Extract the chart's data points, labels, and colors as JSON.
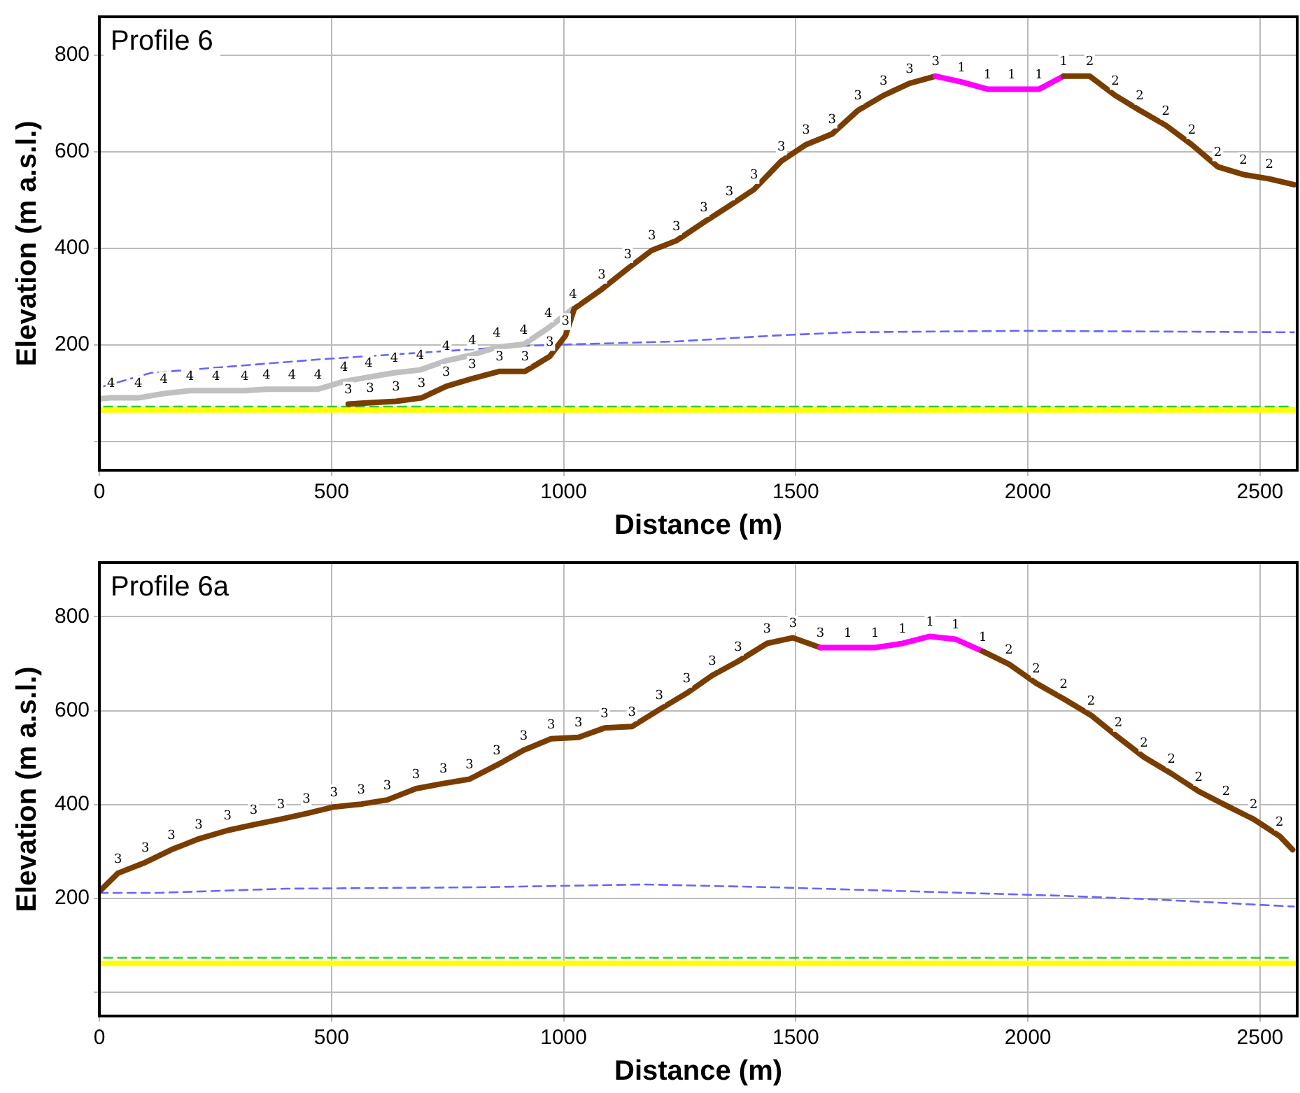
{
  "chart_data": [
    {
      "type": "line",
      "title": "Profile 6",
      "xlabel": "Distance (m)",
      "ylabel": "Elevation (m a.s.l.)",
      "xlim": [
        0,
        2580
      ],
      "xticks": [
        0,
        500,
        1000,
        1500,
        2000,
        2500
      ],
      "ylim": [
        -60,
        880
      ],
      "yticks": [
        {
          "value": 0,
          "label": null
        },
        200,
        400,
        600,
        800
      ],
      "grid": true,
      "legend": false,
      "marker": "none",
      "series": [
        {
          "color": "#ffff00",
          "x": [
            0,
            2580
          ],
          "values": [
            65,
            65
          ]
        },
        {
          "color": "#33cc33",
          "line_style": "dashed",
          "x": [
            10,
            2570
          ],
          "values": [
            72,
            72
          ]
        },
        {
          "color": "#6666ff",
          "line_style": "dashed",
          "x": [
            10,
            112,
            477,
            917,
            1020,
            1243,
            1451,
            1615,
            1987,
            2573
          ],
          "values": [
            114,
            142,
            170,
            198,
            201,
            207,
            219,
            226,
            229,
            226
          ]
        },
        {
          "name": "4",
          "color": "#c0c0c0",
          "x": [
            0,
            25,
            84,
            139,
            195,
            251,
            313,
            360,
            415,
            471,
            527,
            580,
            635,
            691,
            747,
            803,
            856,
            914,
            967,
            1020
          ],
          "values": [
            88,
            90,
            90,
            99,
            105,
            105,
            105,
            108,
            108,
            108,
            124,
            133,
            142,
            148,
            167,
            179,
            195,
            201,
            235,
            275
          ]
        },
        {
          "name": "3",
          "color": "#7a3d00",
          "x": [
            536,
            583,
            639,
            694,
            747,
            803,
            862,
            917,
            970,
            1004,
            1023,
            1082,
            1138,
            1190,
            1243,
            1302,
            1357,
            1410,
            1469,
            1522,
            1578,
            1634,
            1689,
            1745,
            1801
          ],
          "values": [
            77,
            80,
            83,
            90,
            114,
            130,
            145,
            145,
            176,
            219,
            275,
            315,
            358,
            396,
            416,
            454,
            488,
            522,
            581,
            615,
            637,
            686,
            717,
            742,
            757
          ]
        },
        {
          "name": "1",
          "color": "#ff00ff",
          "x": [
            1801,
            1857,
            1913,
            1965,
            2024,
            2077
          ],
          "values": [
            757,
            745,
            730,
            730,
            730,
            757
          ]
        },
        {
          "name": "2",
          "color": "#7a3d00",
          "x": [
            2077,
            2133,
            2188,
            2241,
            2297,
            2353,
            2409,
            2464,
            2520,
            2573
          ],
          "values": [
            757,
            757,
            717,
            686,
            655,
            615,
            569,
            553,
            544,
            532
          ]
        }
      ]
    },
    {
      "type": "line",
      "title": "Profile 6a",
      "xlabel": "Distance (m)",
      "ylabel": "Elevation (m a.s.l.)",
      "xlim": [
        0,
        2580
      ],
      "xticks": [
        0,
        500,
        1000,
        1500,
        2000,
        2500
      ],
      "ylim": [
        -50,
        915
      ],
      "yticks": [
        {
          "value": 0,
          "label": null
        },
        200,
        400,
        600,
        800
      ],
      "grid": true,
      "legend": false,
      "marker": "none",
      "series": [
        {
          "color": "#ffff00",
          "x": [
            0,
            2580
          ],
          "values": [
            62,
            62
          ]
        },
        {
          "color": "#33cc33",
          "line_style": "dashed",
          "x": [
            10,
            2570
          ],
          "values": [
            74,
            74
          ]
        },
        {
          "color": "#6666ff",
          "line_style": "dashed",
          "x": [
            0,
            121,
            400,
            815,
            1175,
            1451,
            1761,
            2071,
            2275,
            2573
          ],
          "values": [
            212,
            212,
            221,
            224,
            230,
            224,
            215,
            206,
            198,
            183
          ]
        },
        {
          "name": "3",
          "color": "#7a3d00",
          "x": [
            0,
            40,
            99,
            155,
            214,
            276,
            332,
            391,
            446,
            505,
            564,
            620,
            682,
            741,
            797,
            856,
            914,
            973,
            1032,
            1088,
            1147,
            1206,
            1265,
            1320,
            1376,
            1438,
            1494,
            1553
          ],
          "values": [
            215,
            254,
            277,
            304,
            327,
            345,
            357,
            369,
            381,
            395,
            401,
            410,
            434,
            445,
            454,
            484,
            516,
            540,
            543,
            563,
            566,
            602,
            637,
            675,
            705,
            743,
            755,
            734
          ]
        },
        {
          "name": "1",
          "color": "#ff00ff",
          "x": [
            1553,
            1612,
            1671,
            1730,
            1789,
            1844,
            1903
          ],
          "values": [
            734,
            734,
            734,
            743,
            758,
            752,
            726
          ]
        },
        {
          "name": "2",
          "color": "#7a3d00",
          "x": [
            1903,
            1959,
            2018,
            2077,
            2136,
            2195,
            2250,
            2309,
            2368,
            2427,
            2486,
            2542,
            2570
          ],
          "values": [
            726,
            699,
            658,
            625,
            590,
            543,
            501,
            466,
            428,
            398,
            369,
            333,
            304
          ]
        }
      ]
    }
  ]
}
